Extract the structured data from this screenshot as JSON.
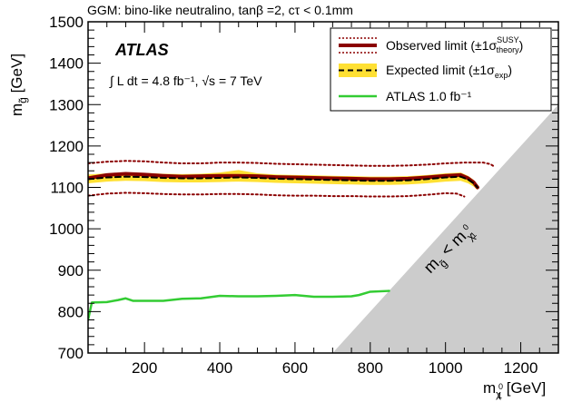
{
  "chart_data": {
    "type": "line",
    "title": "GGM: bino-like neutralino, tanβ =2, cτ < 0.1mm",
    "experiment_label": "ATLAS",
    "luminosity_label": "∫ L dt = 4.8 fb⁻¹, √s = 7 TeV",
    "xlabel": "mχ₁⁰ [GeV]",
    "ylabel": "m g̃ [GeV]",
    "xlim": [
      50,
      1300
    ],
    "ylim": [
      700,
      1500
    ],
    "x_ticks": [
      "200",
      "400",
      "600",
      "800",
      "1000",
      "1200"
    ],
    "y_ticks": [
      "700",
      "800",
      "900",
      "1000",
      "1100",
      "1200",
      "1300",
      "1400",
      "1500"
    ],
    "legend_position": "top-right",
    "excluded_region_label": "m g̃ < m χ₁⁰",
    "colors": {
      "observed": "#8b0000",
      "expected": "#000000",
      "band": "#ffe033",
      "atlas_1fb": "#33cc33",
      "excluded": "#cccccc"
    },
    "series": [
      {
        "name": "Observed limit (±1σ SUSY theory)",
        "x": [
          50,
          100,
          150,
          200,
          250,
          300,
          350,
          400,
          450,
          500,
          550,
          600,
          650,
          700,
          750,
          800,
          850,
          900,
          950,
          1000,
          1040,
          1060,
          1075,
          1085
        ],
        "y": [
          1122,
          1130,
          1133,
          1131,
          1128,
          1126,
          1127,
          1128,
          1128,
          1127,
          1125,
          1124,
          1123,
          1122,
          1121,
          1120,
          1120,
          1121,
          1124,
          1128,
          1130,
          1122,
          1112,
          1100
        ]
      },
      {
        "name": "Observed +1σ theory",
        "x": [
          50,
          100,
          150,
          200,
          250,
          300,
          350,
          400,
          450,
          500,
          550,
          600,
          650,
          700,
          750,
          800,
          850,
          900,
          950,
          1000,
          1050,
          1100,
          1120,
          1130
        ],
        "y": [
          1158,
          1162,
          1164,
          1163,
          1160,
          1158,
          1158,
          1160,
          1160,
          1159,
          1157,
          1156,
          1155,
          1154,
          1153,
          1152,
          1152,
          1153,
          1155,
          1158,
          1160,
          1160,
          1156,
          1150
        ]
      },
      {
        "name": "Observed -1σ theory",
        "x": [
          50,
          100,
          150,
          200,
          250,
          300,
          350,
          400,
          450,
          500,
          550,
          600,
          650,
          700,
          750,
          800,
          850,
          900,
          950,
          1000,
          1030,
          1050
        ],
        "y": [
          1080,
          1085,
          1087,
          1086,
          1084,
          1083,
          1083,
          1084,
          1084,
          1083,
          1081,
          1080,
          1080,
          1079,
          1079,
          1078,
          1078,
          1079,
          1082,
          1086,
          1085,
          1078
        ]
      },
      {
        "name": "Expected limit (±1σ exp)",
        "x": [
          50,
          100,
          150,
          200,
          250,
          300,
          350,
          400,
          450,
          500,
          550,
          600,
          650,
          700,
          750,
          800,
          850,
          900,
          950,
          1000,
          1040,
          1060,
          1075,
          1085
        ],
        "y": [
          1120,
          1124,
          1126,
          1125,
          1123,
          1122,
          1122,
          1123,
          1124,
          1123,
          1121,
          1120,
          1119,
          1118,
          1117,
          1116,
          1116,
          1117,
          1120,
          1124,
          1126,
          1119,
          1110,
          1100
        ]
      },
      {
        "name": "ATLAS 1.0 fb⁻¹",
        "x": [
          50,
          60,
          100,
          130,
          150,
          170,
          200,
          250,
          300,
          350,
          400,
          450,
          500,
          550,
          600,
          650,
          700,
          750,
          770,
          800,
          850
        ],
        "y": [
          780,
          822,
          823,
          828,
          832,
          826,
          826,
          826,
          831,
          832,
          838,
          837,
          837,
          838,
          840,
          836,
          836,
          837,
          840,
          848,
          850
        ]
      }
    ],
    "expected_band": {
      "x": [
        50,
        100,
        150,
        200,
        250,
        300,
        350,
        400,
        450,
        500,
        550,
        600,
        650,
        700,
        750,
        800,
        850,
        900,
        950,
        1000,
        1040,
        1060,
        1075,
        1085
      ],
      "lower": [
        1110,
        1114,
        1116,
        1115,
        1113,
        1112,
        1112,
        1113,
        1114,
        1113,
        1111,
        1110,
        1109,
        1108,
        1107,
        1106,
        1106,
        1107,
        1110,
        1114,
        1116,
        1110,
        1102,
        1094
      ],
      "upper": [
        1131,
        1134,
        1136,
        1135,
        1133,
        1132,
        1133,
        1136,
        1142,
        1134,
        1131,
        1130,
        1129,
        1128,
        1127,
        1126,
        1126,
        1127,
        1130,
        1134,
        1136,
        1128,
        1118,
        1106
      ]
    },
    "excluded_region": {
      "x": [
        700,
        1300,
        1300
      ],
      "y": [
        700,
        1300,
        700
      ]
    }
  }
}
